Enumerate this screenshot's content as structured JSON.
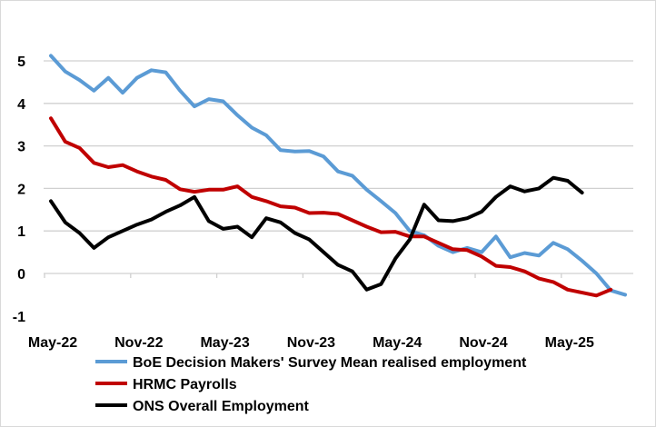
{
  "chart_data": {
    "type": "line",
    "title": "",
    "xlabel": "",
    "ylabel": "",
    "ylim": [
      -1,
      5
    ],
    "yticks": [
      "-1",
      "0",
      "1",
      "2",
      "3",
      "4",
      "5"
    ],
    "x_start": "May-22",
    "x_tick_labels": [
      "May-22",
      "Nov-22",
      "May-23",
      "Nov-23",
      "May-24",
      "Nov-24",
      "May-25"
    ],
    "grid": true,
    "legend_position": "bottom",
    "series": [
      {
        "name": "BoE Decision Makers' Survey Mean realised employment",
        "color": "#5B9BD5",
        "values": [
          5.12,
          4.75,
          4.55,
          4.3,
          4.6,
          4.25,
          4.6,
          4.78,
          4.73,
          4.3,
          3.93,
          4.1,
          4.05,
          3.72,
          3.43,
          3.25,
          2.9,
          2.87,
          2.88,
          2.75,
          2.4,
          2.3,
          1.97,
          1.7,
          1.42,
          1.0,
          0.9,
          0.65,
          0.5,
          0.6,
          0.5,
          0.87,
          0.38,
          0.48,
          0.42,
          0.72,
          0.57,
          0.3,
          0.0,
          -0.4,
          -0.5
        ]
      },
      {
        "name": "HRMC Payrolls",
        "color": "#C00000",
        "values": [
          3.65,
          3.1,
          2.95,
          2.6,
          2.5,
          2.55,
          2.4,
          2.28,
          2.2,
          1.98,
          1.92,
          1.97,
          1.97,
          2.05,
          1.8,
          1.7,
          1.58,
          1.55,
          1.42,
          1.43,
          1.4,
          1.25,
          1.1,
          0.97,
          0.98,
          0.87,
          0.87,
          0.72,
          0.57,
          0.55,
          0.4,
          0.18,
          0.15,
          0.05,
          -0.12,
          -0.2,
          -0.38,
          -0.45,
          -0.52,
          -0.38
        ]
      },
      {
        "name": "ONS Overall Employment",
        "color": "#000000",
        "values": [
          1.7,
          1.2,
          0.95,
          0.6,
          0.85,
          1.0,
          1.15,
          1.27,
          1.45,
          1.6,
          1.8,
          1.23,
          1.05,
          1.1,
          0.85,
          1.3,
          1.2,
          0.95,
          0.8,
          0.5,
          0.2,
          0.05,
          -0.38,
          -0.25,
          0.35,
          0.8,
          1.62,
          1.25,
          1.23,
          1.3,
          1.45,
          1.8,
          2.05,
          1.93,
          2.0,
          2.25,
          2.18,
          1.9
        ]
      }
    ]
  }
}
